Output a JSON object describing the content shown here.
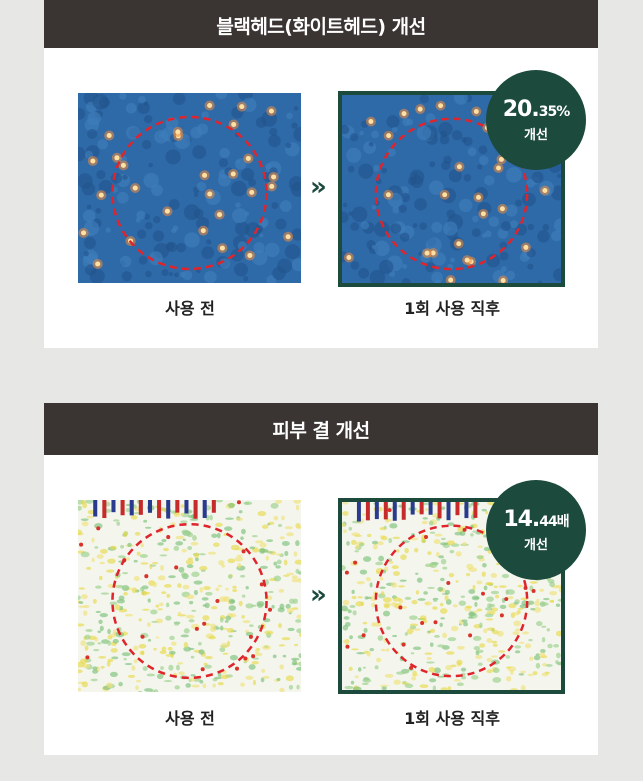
{
  "sections": [
    {
      "title": "블랙헤드(화이트헤드) 개선",
      "before_label": "사용 전",
      "after_label": "1회 사용 직후",
      "badge_value_main": "20.",
      "badge_value_small": "35%",
      "badge_sub": "개선",
      "arrow": "»"
    },
    {
      "title": "피부 결 개선",
      "before_label": "사용 전",
      "after_label": "1회 사용 직후",
      "badge_value_main": "14.",
      "badge_value_small": "44배",
      "badge_sub": "개선",
      "arrow": "»"
    }
  ],
  "colors": {
    "header": "#3a3433",
    "accent": "#1c4a3d",
    "circle": "#e0242c"
  }
}
